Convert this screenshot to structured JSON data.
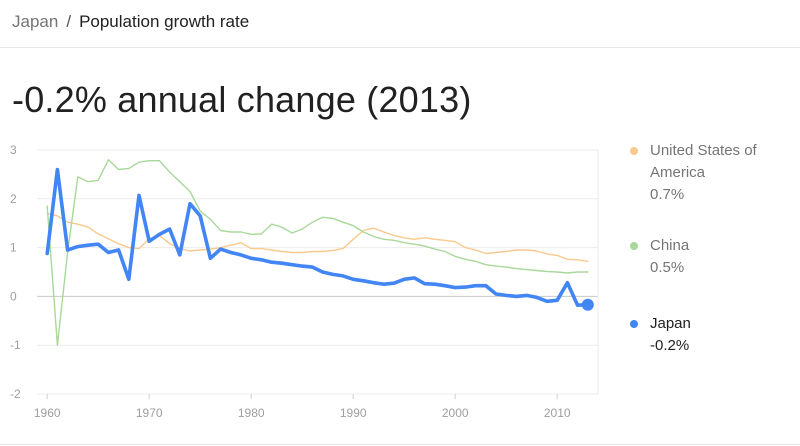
{
  "breadcrumb": {
    "root": "Japan",
    "separator": "/",
    "current": "Population growth rate"
  },
  "headline": "-0.2% annual change (2013)",
  "colors": {
    "japan": "#4285f4",
    "china": "#a8d89a",
    "usa": "#f9c98d",
    "grid": "#ececec",
    "zero_line": "#c8c8c8",
    "tick_text": "#9e9e9e"
  },
  "legend": [
    {
      "name": "United States of America",
      "value": "0.7%",
      "color": "#f9c98d",
      "active": false
    },
    {
      "name": "China",
      "value": "0.5%",
      "color": "#a8d89a",
      "active": false
    },
    {
      "name": "Japan",
      "value": "-0.2%",
      "color": "#4285f4",
      "active": true
    }
  ],
  "chart_data": {
    "type": "line",
    "title": "-0.2% annual change (2013)",
    "xlabel": "",
    "ylabel": "",
    "xlim": [
      1959,
      2014
    ],
    "ylim": [
      -2,
      3
    ],
    "x_ticks": [
      1960,
      1970,
      1980,
      1990,
      2000,
      2010
    ],
    "y_ticks": [
      3,
      2,
      1,
      0,
      -1,
      -2
    ],
    "grid": true,
    "legend_position": "right",
    "x": [
      1960,
      1961,
      1962,
      1963,
      1964,
      1965,
      1966,
      1967,
      1968,
      1969,
      1970,
      1971,
      1972,
      1973,
      1974,
      1975,
      1976,
      1977,
      1978,
      1979,
      1980,
      1981,
      1982,
      1983,
      1984,
      1985,
      1986,
      1987,
      1988,
      1989,
      1990,
      1991,
      1992,
      1993,
      1994,
      1995,
      1996,
      1997,
      1998,
      1999,
      2000,
      2001,
      2002,
      2003,
      2004,
      2005,
      2006,
      2007,
      2008,
      2009,
      2010,
      2011,
      2012,
      2013
    ],
    "series": [
      {
        "name": "United States of America",
        "values": [
          1.7,
          1.65,
          1.52,
          1.48,
          1.42,
          1.28,
          1.18,
          1.08,
          1.0,
          0.98,
          1.18,
          1.25,
          1.08,
          0.98,
          0.93,
          0.95,
          0.97,
          1.0,
          1.05,
          1.1,
          0.98,
          0.98,
          0.95,
          0.92,
          0.9,
          0.9,
          0.92,
          0.92,
          0.94,
          0.98,
          1.17,
          1.35,
          1.4,
          1.32,
          1.25,
          1.2,
          1.17,
          1.2,
          1.17,
          1.15,
          1.12,
          1.0,
          0.95,
          0.88,
          0.9,
          0.92,
          0.95,
          0.95,
          0.93,
          0.87,
          0.84,
          0.76,
          0.75,
          0.72
        ]
      },
      {
        "name": "China",
        "values": [
          1.85,
          -1.0,
          0.9,
          2.45,
          2.35,
          2.38,
          2.8,
          2.6,
          2.62,
          2.75,
          2.78,
          2.78,
          2.55,
          2.35,
          2.15,
          1.75,
          1.58,
          1.35,
          1.32,
          1.32,
          1.27,
          1.28,
          1.48,
          1.42,
          1.3,
          1.38,
          1.52,
          1.62,
          1.6,
          1.52,
          1.45,
          1.32,
          1.23,
          1.17,
          1.15,
          1.1,
          1.07,
          1.03,
          0.97,
          0.92,
          0.82,
          0.76,
          0.72,
          0.65,
          0.62,
          0.6,
          0.57,
          0.55,
          0.53,
          0.51,
          0.5,
          0.48,
          0.5,
          0.5
        ]
      },
      {
        "name": "Japan",
        "values": [
          0.88,
          2.6,
          0.95,
          1.02,
          1.05,
          1.07,
          0.9,
          0.95,
          0.35,
          2.07,
          1.13,
          1.27,
          1.38,
          0.85,
          1.9,
          1.65,
          0.78,
          0.97,
          0.9,
          0.85,
          0.78,
          0.75,
          0.7,
          0.68,
          0.65,
          0.62,
          0.6,
          0.5,
          0.45,
          0.42,
          0.35,
          0.32,
          0.28,
          0.25,
          0.27,
          0.35,
          0.38,
          0.26,
          0.25,
          0.22,
          0.18,
          0.19,
          0.22,
          0.22,
          0.05,
          0.02,
          0.0,
          0.02,
          -0.02,
          -0.1,
          -0.08,
          0.28,
          -0.18,
          -0.17
        ]
      }
    ]
  }
}
